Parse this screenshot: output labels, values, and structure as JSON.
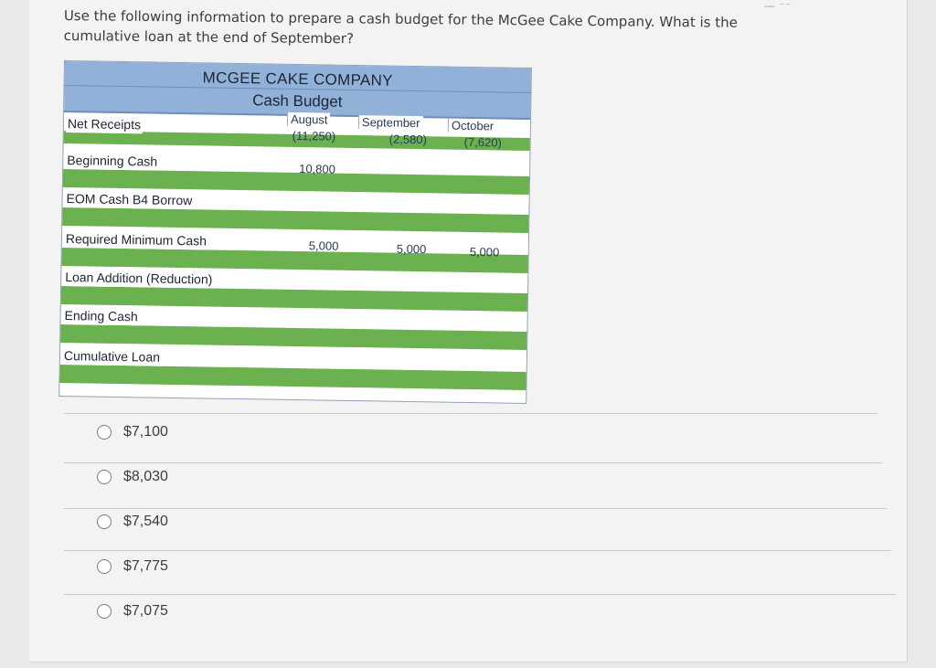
{
  "question": {
    "line1": "Use the following information to prepare a cash budget for the McGee Cake Company. What is the",
    "line2": "cumulative loan at the end of September?"
  },
  "budget": {
    "company": "MCGEE CAKE COMPANY",
    "title": "Cash Budget",
    "months": [
      "August",
      "September",
      "October"
    ],
    "rows": [
      {
        "label": "Net Receipts",
        "values": [
          "(11,250)",
          "(2,580)",
          "(7,620)"
        ]
      },
      {
        "label": "Beginning Cash",
        "values": [
          "10,800",
          "",
          ""
        ]
      },
      {
        "label": "EOM Cash B4 Borrow",
        "values": [
          "",
          "",
          ""
        ]
      },
      {
        "label": "Required Minimum Cash",
        "values": [
          "5,000",
          "5,000",
          "5,000"
        ]
      },
      {
        "label": "Loan Addition (Reduction)",
        "values": [
          "",
          "",
          ""
        ]
      },
      {
        "label": "Ending Cash",
        "values": [
          "",
          "",
          ""
        ]
      },
      {
        "label": "Cumulative Loan",
        "values": [
          "",
          "",
          ""
        ]
      }
    ],
    "band_color": "#6cb150",
    "header_color": "#91b1d8"
  },
  "choices": [
    {
      "label": "$7,100"
    },
    {
      "label": "$8,030"
    },
    {
      "label": "$7,540"
    },
    {
      "label": "$7,775"
    },
    {
      "label": "$7,075"
    }
  ]
}
